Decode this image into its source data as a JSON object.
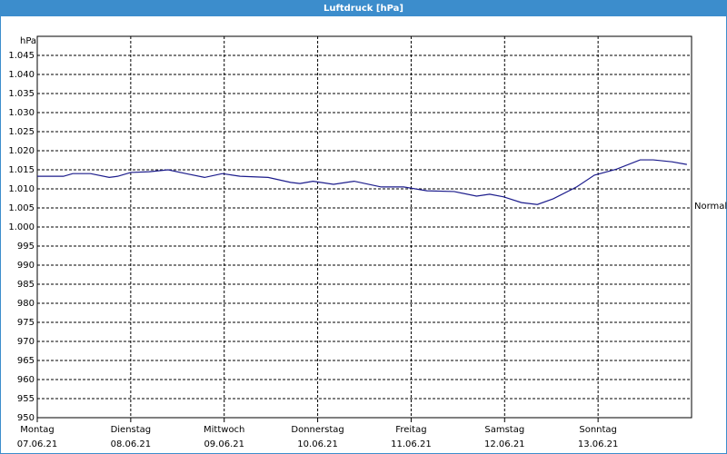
{
  "chart_data": {
    "type": "line",
    "title": "Luftdruck [hPa]",
    "y_label": "hPa",
    "annotation": {
      "text": "Normal",
      "value": 1005
    },
    "xlim": [
      0,
      7
    ],
    "xticks": [
      {
        "value": 0,
        "label": [
          "Montag",
          "07.06.21"
        ]
      },
      {
        "value": 1,
        "label": [
          "Dienstag",
          "08.06.21"
        ]
      },
      {
        "value": 2,
        "label": [
          "Mittwoch",
          "09.06.21"
        ]
      },
      {
        "value": 3,
        "label": [
          "Donnerstag",
          "10.06.21"
        ]
      },
      {
        "value": 4,
        "label": [
          "Freitag",
          "11.06.21"
        ]
      },
      {
        "value": 5,
        "label": [
          "Samstag",
          "12.06.21"
        ]
      },
      {
        "value": 6,
        "label": [
          "Sonntag",
          "13.06.21"
        ]
      }
    ],
    "ylim": [
      950,
      1050
    ],
    "yticks": [
      950,
      955,
      960,
      965,
      970,
      975,
      980,
      985,
      990,
      995,
      {
        "value": 1000,
        "label": "1.000"
      },
      {
        "value": 1005,
        "label": "1.005"
      },
      {
        "value": 1010,
        "label": "1.010"
      },
      {
        "value": 1015,
        "label": "1.015"
      },
      {
        "value": 1020,
        "label": "1.020"
      },
      {
        "value": 1025,
        "label": "1.025"
      },
      {
        "value": 1030,
        "label": "1.030"
      },
      {
        "value": 1035,
        "label": "1.035"
      },
      {
        "value": 1040,
        "label": "1.040"
      },
      {
        "value": 1045,
        "label": "1.045"
      }
    ],
    "grid": true,
    "series": [
      {
        "color": "#1c1c8c",
        "x": [
          0,
          0.28,
          0.38,
          0.57,
          0.77,
          0.86,
          1,
          1.2,
          1.4,
          1.59,
          1.79,
          1.98,
          2.17,
          2.47,
          2.71,
          2.81,
          2.95,
          3.17,
          3.39,
          3.68,
          3.92,
          4.17,
          4.46,
          4.7,
          4.84,
          4.99,
          5.18,
          5.35,
          5.52,
          5.77,
          5.96,
          6.2,
          6.45,
          6.59,
          6.79,
          6.95
        ],
        "values": [
          1013.3,
          1013.3,
          1014,
          1014,
          1013,
          1013.3,
          1014.3,
          1014.5,
          1015,
          1014,
          1013,
          1014,
          1013.3,
          1013,
          1011.7,
          1011.4,
          1012,
          1011.2,
          1012,
          1010.5,
          1010.5,
          1009.5,
          1009.3,
          1008.1,
          1008.6,
          1007.9,
          1006.4,
          1005.9,
          1007.4,
          1010.5,
          1013.6,
          1015.2,
          1017.6,
          1017.6,
          1017.1,
          1016.4
        ]
      }
    ]
  }
}
